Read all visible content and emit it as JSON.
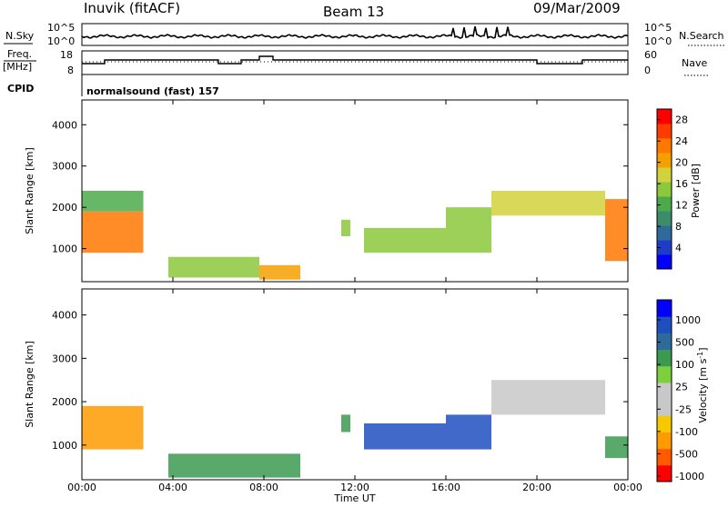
{
  "header": {
    "station": "Inuvik (fitACF)",
    "beam": "Beam 13",
    "date": "09/Mar/2009"
  },
  "noise_panel": {
    "left_label": "N.Sky",
    "left_ticks": [
      "10^5",
      "10^0"
    ],
    "right_ticks": [
      "10^5",
      "10^0"
    ],
    "right_label": "N.Search"
  },
  "freq_panel": {
    "left_label_1": "Freq.",
    "left_label_2": "[MHz]",
    "left_ticks": [
      "18",
      "8"
    ],
    "right_ticks": [
      "60",
      "0"
    ],
    "right_label": "Nave"
  },
  "cpid": {
    "label": "CPID",
    "mode": "normalsound (fast) 157"
  },
  "colors": {
    "power": [
      "#0000ff",
      "#1f3cc8",
      "#2f6b9a",
      "#3c8c6a",
      "#4caa4c",
      "#8cc83c",
      "#d2d23c",
      "#f5a000",
      "#ff7800",
      "#ff3c00",
      "#ff0000"
    ],
    "velocity": [
      "#ff0000",
      "#ff5a00",
      "#ff9b00",
      "#f5c800",
      "#c8c8c8",
      "#c8c8c8",
      "#7bd03c",
      "#3c9a50",
      "#2f6b9a",
      "#1f4fbf",
      "#0000ff"
    ]
  },
  "chart_data": [
    {
      "type": "heatmap",
      "name": "power-panel",
      "ylabel": "Slant Range [km]",
      "yticks": [
        "4000",
        "3000",
        "2000",
        "1000"
      ],
      "ylim": [
        200,
        4600
      ],
      "xlim": [
        "00:00",
        "24:00"
      ],
      "colorbar": {
        "label": "Power [dB]",
        "ticks": [
          "28",
          "24",
          "20",
          "16",
          "12",
          "8",
          "4"
        ],
        "range": [
          0,
          30
        ]
      },
      "echo_regions": [
        {
          "t0": 0.0,
          "t1": 2.7,
          "r0": 900,
          "r1": 1900,
          "value": 24
        },
        {
          "t0": 0.0,
          "t1": 2.7,
          "r0": 1900,
          "r1": 2400,
          "value": 12
        },
        {
          "t0": 3.8,
          "t1": 7.8,
          "r0": 300,
          "r1": 800,
          "value": 14
        },
        {
          "t0": 7.8,
          "t1": 9.6,
          "r0": 250,
          "r1": 600,
          "value": 20
        },
        {
          "t0": 11.4,
          "t1": 11.8,
          "r0": 1300,
          "r1": 1700,
          "value": 14
        },
        {
          "t0": 12.4,
          "t1": 16.0,
          "r0": 900,
          "r1": 1500,
          "value": 14
        },
        {
          "t0": 16.0,
          "t1": 18.0,
          "r0": 900,
          "r1": 2000,
          "value": 16
        },
        {
          "t0": 18.0,
          "t1": 23.0,
          "r0": 1800,
          "r1": 2400,
          "value": 18
        },
        {
          "t0": 23.0,
          "t1": 24.0,
          "r0": 700,
          "r1": 2200,
          "value": 24
        }
      ]
    },
    {
      "type": "heatmap",
      "name": "velocity-panel",
      "ylabel": "Slant Range [km]",
      "yticks": [
        "4000",
        "3000",
        "2000",
        "1000"
      ],
      "ylim": [
        200,
        4600
      ],
      "xlim": [
        "00:00",
        "24:00"
      ],
      "xlabel": "Time UT",
      "xticks": [
        "00:00",
        "04:00",
        "08:00",
        "12:00",
        "16:00",
        "20:00",
        "00:00"
      ],
      "colorbar": {
        "label": "Velocity [m s^-1]",
        "ticks": [
          "1000",
          "500",
          "100",
          "25",
          "-25",
          "-100",
          "-500",
          "-1000"
        ]
      },
      "echo_regions": [
        {
          "t0": 0.0,
          "t1": 2.7,
          "r0": 900,
          "r1": 1900,
          "value": -100
        },
        {
          "t0": 3.8,
          "t1": 9.6,
          "r0": 250,
          "r1": 800,
          "value": 100
        },
        {
          "t0": 11.4,
          "t1": 11.8,
          "r0": 1300,
          "r1": 1700,
          "value": 100
        },
        {
          "t0": 12.4,
          "t1": 16.0,
          "r0": 900,
          "r1": 1500,
          "value": 500
        },
        {
          "t0": 16.0,
          "t1": 18.0,
          "r0": 900,
          "r1": 1700,
          "value": 500
        },
        {
          "t0": 18.0,
          "t1": 23.0,
          "r0": 1700,
          "r1": 2500,
          "value": 0
        },
        {
          "t0": 23.0,
          "t1": 24.0,
          "r0": 700,
          "r1": 1200,
          "value": 100
        }
      ]
    }
  ]
}
